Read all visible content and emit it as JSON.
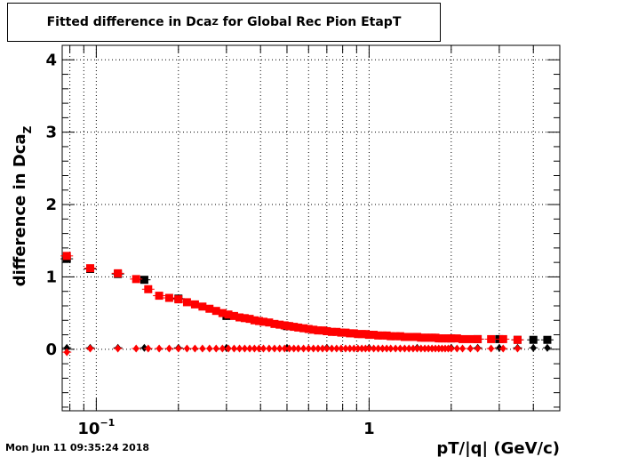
{
  "title": {
    "prefix": "Fitted difference in Dca",
    "subscript": "Z",
    "suffix": " for Global Rec Pion EtapT"
  },
  "timestamp": "Mon Jun 11 09:35:24 2018",
  "chart_data": {
    "type": "scatter",
    "xscale": "log",
    "xlim": [
      0.075,
      5.0
    ],
    "ylim": [
      -0.85,
      4.2
    ],
    "grid": true,
    "xlabel": "pT/|q| (GeV/c)",
    "ylabel": {
      "prefix": "difference in Dca",
      "subscript": "Z"
    },
    "y_ticks": [
      {
        "value": 0,
        "label": "0"
      },
      {
        "value": 1,
        "label": "1"
      },
      {
        "value": 2,
        "label": "2"
      },
      {
        "value": 3,
        "label": "3"
      },
      {
        "value": 4,
        "label": "4"
      }
    ],
    "x_ticks": [
      {
        "value": 0.1,
        "base": "10",
        "exp": "−1"
      },
      {
        "value": 1.0,
        "base": "1",
        "exp": ""
      }
    ],
    "series": [
      {
        "color": "#000000",
        "marker": "square",
        "x": [
          0.078,
          0.095,
          0.12,
          0.15,
          0.2,
          0.3,
          0.5,
          0.7,
          1.0,
          1.5,
          2.0,
          2.5,
          3.0,
          3.5,
          4.0,
          4.5
        ],
        "y": [
          1.25,
          1.11,
          1.04,
          0.96,
          0.7,
          0.46,
          0.32,
          0.25,
          0.2,
          0.17,
          0.15,
          0.14,
          0.14,
          0.13,
          0.13,
          0.13
        ]
      },
      {
        "color": "#ff0000",
        "marker": "square",
        "x": [
          0.078,
          0.095,
          0.12,
          0.14,
          0.155,
          0.17,
          0.185,
          0.2,
          0.215,
          0.23,
          0.245,
          0.26,
          0.275,
          0.29,
          0.305,
          0.32,
          0.335,
          0.35,
          0.365,
          0.38,
          0.395,
          0.41,
          0.43,
          0.45,
          0.47,
          0.49,
          0.51,
          0.53,
          0.55,
          0.575,
          0.6,
          0.625,
          0.65,
          0.675,
          0.7,
          0.73,
          0.76,
          0.79,
          0.82,
          0.85,
          0.88,
          0.91,
          0.94,
          0.97,
          1.0,
          1.04,
          1.08,
          1.12,
          1.16,
          1.2,
          1.25,
          1.3,
          1.35,
          1.4,
          1.45,
          1.5,
          1.55,
          1.6,
          1.65,
          1.7,
          1.75,
          1.8,
          1.85,
          1.9,
          1.95,
          2.0,
          2.1,
          2.2,
          2.35,
          2.5,
          2.8,
          3.1,
          3.5
        ],
        "y": [
          1.29,
          1.12,
          1.05,
          0.97,
          0.83,
          0.74,
          0.71,
          0.69,
          0.65,
          0.62,
          0.59,
          0.56,
          0.53,
          0.5,
          0.48,
          0.46,
          0.44,
          0.43,
          0.42,
          0.4,
          0.39,
          0.38,
          0.37,
          0.35,
          0.34,
          0.33,
          0.32,
          0.31,
          0.3,
          0.29,
          0.28,
          0.27,
          0.26,
          0.26,
          0.25,
          0.24,
          0.24,
          0.23,
          0.23,
          0.22,
          0.22,
          0.21,
          0.21,
          0.21,
          0.2,
          0.2,
          0.19,
          0.19,
          0.19,
          0.18,
          0.18,
          0.18,
          0.17,
          0.17,
          0.17,
          0.17,
          0.16,
          0.16,
          0.16,
          0.16,
          0.16,
          0.15,
          0.15,
          0.15,
          0.15,
          0.15,
          0.15,
          0.14,
          0.14,
          0.14,
          0.14,
          0.14,
          0.13
        ]
      },
      {
        "color": "#000000",
        "marker": "diamond",
        "x": [
          0.078,
          0.095,
          0.12,
          0.15,
          0.2,
          0.3,
          0.5,
          0.7,
          1.0,
          1.5,
          2.0,
          2.5,
          3.0,
          3.5,
          4.0,
          4.5
        ],
        "y": [
          0.02,
          0.02,
          0.02,
          0.02,
          0.02,
          0.02,
          0.02,
          0.02,
          0.02,
          0.02,
          0.02,
          0.02,
          0.02,
          0.02,
          0.02,
          0.02
        ]
      },
      {
        "color": "#ff0000",
        "marker": "diamond",
        "x": [
          0.078,
          0.095,
          0.12,
          0.14,
          0.155,
          0.17,
          0.185,
          0.2,
          0.215,
          0.23,
          0.245,
          0.26,
          0.275,
          0.29,
          0.305,
          0.32,
          0.335,
          0.35,
          0.365,
          0.38,
          0.395,
          0.41,
          0.43,
          0.45,
          0.47,
          0.49,
          0.51,
          0.53,
          0.55,
          0.575,
          0.6,
          0.625,
          0.65,
          0.675,
          0.7,
          0.73,
          0.76,
          0.79,
          0.82,
          0.85,
          0.88,
          0.91,
          0.94,
          0.97,
          1.0,
          1.04,
          1.08,
          1.12,
          1.16,
          1.2,
          1.25,
          1.3,
          1.35,
          1.4,
          1.45,
          1.5,
          1.55,
          1.6,
          1.65,
          1.7,
          1.75,
          1.8,
          1.85,
          1.9,
          1.95,
          2.0,
          2.1,
          2.2,
          2.35,
          2.5,
          2.8,
          3.1,
          3.5
        ],
        "y": [
          -0.04,
          0.01,
          0.01,
          0.01,
          0.01,
          0.01,
          0.01,
          0.01,
          0.01,
          0.01,
          0.01,
          0.01,
          0.01,
          0.01,
          0.01,
          0.01,
          0.01,
          0.01,
          0.01,
          0.01,
          0.01,
          0.01,
          0.01,
          0.01,
          0.01,
          0.01,
          0.01,
          0.01,
          0.01,
          0.01,
          0.01,
          0.01,
          0.01,
          0.01,
          0.01,
          0.01,
          0.01,
          0.01,
          0.01,
          0.01,
          0.01,
          0.01,
          0.01,
          0.01,
          0.01,
          0.01,
          0.01,
          0.01,
          0.01,
          0.01,
          0.01,
          0.01,
          0.01,
          0.01,
          0.01,
          0.01,
          0.01,
          0.01,
          0.01,
          0.01,
          0.01,
          0.01,
          0.01,
          0.01,
          0.01,
          0.01,
          0.01,
          0.01,
          0.01,
          0.01,
          0.01,
          0.01,
          0.01
        ]
      }
    ]
  }
}
